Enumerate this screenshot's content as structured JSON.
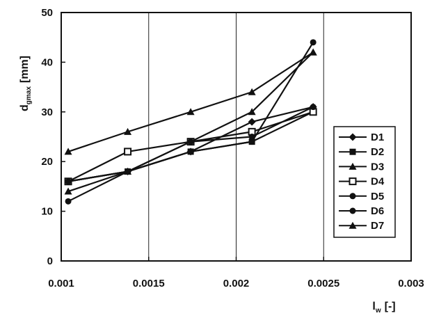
{
  "chart_data": {
    "type": "line",
    "title": "",
    "xlabel_main": "l",
    "xlabel_sub": "w",
    "xlabel_unit": "[-]",
    "ylabel_main": "d",
    "ylabel_sub": "gmax",
    "ylabel_unit": "[mm]",
    "xlim": [
      0.001,
      0.003
    ],
    "ylim": [
      0,
      50
    ],
    "x_ticks": [
      0.001,
      0.0015,
      0.002,
      0.0025,
      0.003
    ],
    "x_tick_labels": [
      "0.001",
      "0.0015",
      "0.002",
      "0.0025",
      "0.003"
    ],
    "y_ticks": [
      0,
      10,
      20,
      30,
      40,
      50
    ],
    "y_tick_labels": [
      "0",
      "10",
      "20",
      "30",
      "40",
      "50"
    ],
    "grid": "vertical",
    "legend_position": "right",
    "x": [
      0.00104,
      0.00138,
      0.00174,
      0.00209,
      0.00244
    ],
    "series": [
      {
        "name": "D1",
        "marker": "diamond",
        "values": [
          16,
          18,
          22,
          28,
          31
        ]
      },
      {
        "name": "D2",
        "marker": "square",
        "values": [
          16,
          18,
          22,
          24,
          30
        ]
      },
      {
        "name": "D3",
        "marker": "triangle",
        "values": [
          14,
          18,
          24,
          30,
          42
        ]
      },
      {
        "name": "D4",
        "marker": "square-open",
        "values": [
          16,
          22,
          24,
          26,
          30
        ]
      },
      {
        "name": "D5",
        "marker": "circle",
        "values": [
          12,
          18,
          22,
          24,
          44
        ]
      },
      {
        "name": "D6",
        "marker": "circle",
        "values": [
          16,
          18,
          24,
          25,
          31
        ]
      },
      {
        "name": "D7",
        "marker": "triangle",
        "values": [
          22,
          26,
          30,
          34,
          42
        ]
      }
    ]
  }
}
